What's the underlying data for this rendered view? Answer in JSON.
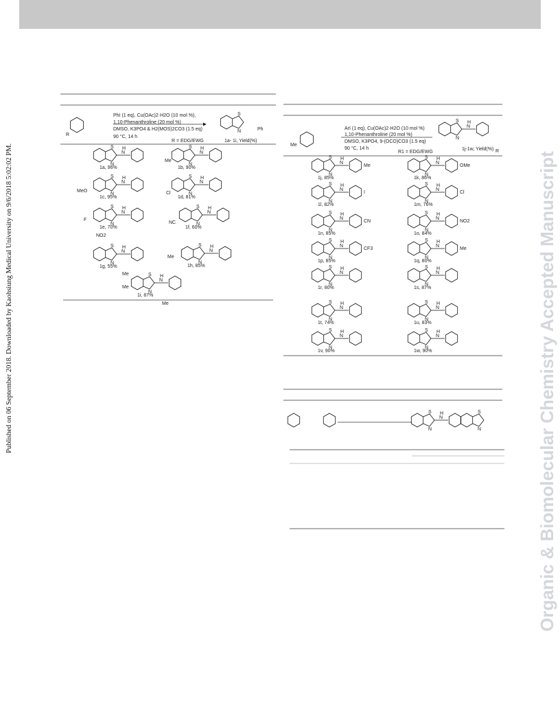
{
  "side_note": "Published on 06 September 2018. Downloaded by Kaohsiung Medical University on 9/6/2018 5:02:02 PM.",
  "watermark": "Organic & Biomolecular Chemistry Accepted Manuscript",
  "atoms": [
    "S",
    "N",
    "H"
  ],
  "scheme1": {
    "conditions": [
      "PhI (1 eq), Cu(OAc)2·H2O (10 mol %),",
      "1,10-Phenanthroline (20 mol %)",
      "DMSO, K3PO4 & H2(MOS)2CO3 (1.5 eq)",
      "90 °C, 14 h"
    ],
    "r_label": "R = EDG/EWG",
    "product_label": "1a- 1i, Yield(%)",
    "start_r": "R",
    "product_ph": "Ph",
    "compounds": [
      "1a, 96%",
      "1b, 90%",
      "1c, 95%",
      "1d, 81%",
      "1e, 70%",
      "1f, 60%",
      "1g, 55%",
      "1h, 85%",
      "1i, 87%"
    ],
    "substituents": [
      "Me",
      "MeO",
      "Cl",
      "F",
      "NC",
      "NO2",
      "Me",
      "Me",
      "Me",
      "Me"
    ]
  },
  "scheme2": {
    "conditions": [
      "ArI (1 eq), Cu(OAc)2·H2O (10 mol %)",
      "1,10-Phenanthroline (20 mol %)",
      "DMSO, K3PO4, 9-(OCO)CO3 (1.5 eq)",
      "90 °C, 14 h"
    ],
    "r_label": "R1 = EDG/EWG",
    "product_label": "1j-1w, Yield(%)",
    "start_me": "Me",
    "product_r": "R",
    "compounds": [
      "1j, 85%",
      "1k, 86%",
      "1l, 82%",
      "1m, 76%",
      "1n, 85%",
      "1o, 84%",
      "1p, 85%",
      "1q, 80%",
      "1r, 80%",
      "1s, 87%",
      "1t, 74%",
      "1u, 83%",
      "1v, 90%",
      "1w, 90%"
    ],
    "para_groups": [
      "Me",
      "OMe",
      "I",
      "Cl",
      "CN",
      "NO2",
      "CF3",
      "Me"
    ]
  }
}
